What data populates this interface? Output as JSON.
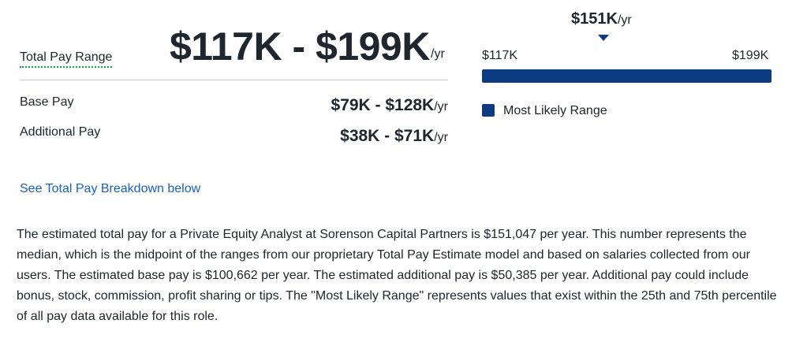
{
  "total_pay": {
    "label": "Total Pay Range",
    "range": "$117K - $199K",
    "unit": "/yr"
  },
  "rows": [
    {
      "label": "Base Pay",
      "value": "$79K - $128K",
      "unit": "/yr"
    },
    {
      "label": "Additional Pay",
      "value": "$38K - $71K",
      "unit": "/yr"
    }
  ],
  "range_chart": {
    "median": "$151K",
    "median_unit": "/yr",
    "low": "$117K",
    "high": "$199K",
    "legend": "Most Likely Range",
    "accent_color": "#0d3b82"
  },
  "breakdown_link": "See Total Pay Breakdown below",
  "description": "The estimated total pay for a Private Equity Analyst at Sorenson Capital Partners is $151,047 per year. This number represents the median, which is the midpoint of the ranges from our proprietary Total Pay Estimate model and based on salaries collected from our users. The estimated base pay is $100,662 per year. The estimated additional pay is $50,385 per year. Additional pay could include bonus, stock, commission, profit sharing or tips. The \"Most Likely Range\" represents values that exist within the 25th and 75th percentile of all pay data available for this role."
}
